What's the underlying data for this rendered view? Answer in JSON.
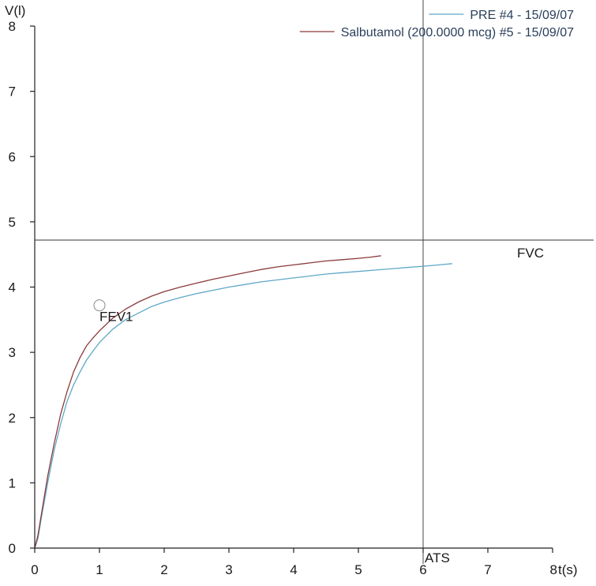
{
  "chart_data": {
    "type": "line",
    "xlabel": "t(s)",
    "ylabel": "V(l)",
    "xlim": [
      0,
      8
    ],
    "ylim": [
      0,
      8
    ],
    "x_ticks": [
      "0",
      "1",
      "2",
      "3",
      "4",
      "5",
      "6",
      "7",
      "8"
    ],
    "y_ticks": [
      "0",
      "1",
      "2",
      "3",
      "4",
      "5",
      "6",
      "7",
      "8"
    ],
    "grid": false,
    "legend_position": "top-right",
    "series": [
      {
        "name": "PRE #4 - 15/09/07",
        "color": "#5fa8c8",
        "x": [
          0,
          0.05,
          0.1,
          0.2,
          0.3,
          0.4,
          0.5,
          0.6,
          0.7,
          0.8,
          0.9,
          1.0,
          1.2,
          1.4,
          1.6,
          1.8,
          2.0,
          2.25,
          2.5,
          2.75,
          3.0,
          3.25,
          3.5,
          3.75,
          4.0,
          4.25,
          4.5,
          4.75,
          5.0,
          5.25,
          5.5,
          5.75,
          6.0,
          6.25,
          6.45
        ],
        "y": [
          0,
          0.15,
          0.45,
          1.0,
          1.5,
          1.9,
          2.25,
          2.5,
          2.7,
          2.88,
          3.02,
          3.15,
          3.35,
          3.5,
          3.6,
          3.7,
          3.77,
          3.84,
          3.9,
          3.95,
          4.0,
          4.04,
          4.08,
          4.11,
          4.14,
          4.17,
          4.2,
          4.22,
          4.24,
          4.26,
          4.28,
          4.3,
          4.32,
          4.34,
          4.36
        ]
      },
      {
        "name": "Salbutamol (200.0000 mcg) #5 - 15/09/07",
        "color": "#8c3a3a",
        "x": [
          0,
          0.05,
          0.1,
          0.2,
          0.3,
          0.4,
          0.5,
          0.6,
          0.7,
          0.8,
          0.9,
          1.0,
          1.2,
          1.4,
          1.6,
          1.8,
          2.0,
          2.25,
          2.5,
          2.75,
          3.0,
          3.25,
          3.5,
          3.75,
          4.0,
          4.25,
          4.5,
          4.75,
          5.0,
          5.2,
          5.35
        ],
        "y": [
          0,
          0.2,
          0.5,
          1.1,
          1.6,
          2.05,
          2.4,
          2.7,
          2.92,
          3.1,
          3.22,
          3.33,
          3.52,
          3.66,
          3.77,
          3.86,
          3.93,
          4.0,
          4.06,
          4.12,
          4.17,
          4.22,
          4.27,
          4.31,
          4.34,
          4.37,
          4.4,
          4.42,
          4.44,
          4.46,
          4.48
        ]
      }
    ],
    "reference_lines": [
      {
        "orientation": "horizontal",
        "value": 4.72,
        "label": "FVC"
      },
      {
        "orientation": "vertical",
        "value": 6,
        "label": "ATS"
      }
    ],
    "annotations": [
      {
        "text": "FEV1",
        "x": 1.0,
        "y": 3.72
      }
    ]
  }
}
